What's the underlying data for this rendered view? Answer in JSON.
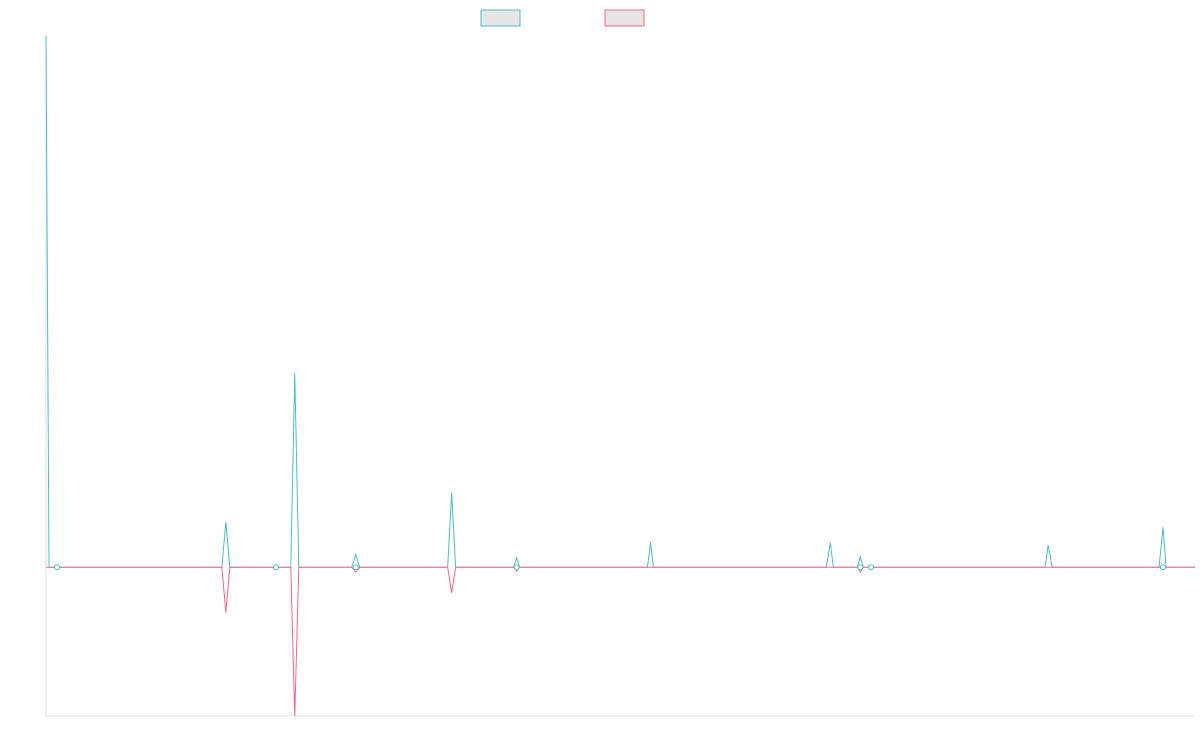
{
  "chart_data": {
    "type": "line",
    "title": "",
    "xlabel": "",
    "ylabel": "",
    "legend_position": "top-center",
    "grid": false,
    "ylim": [
      -0.28,
      1.0
    ],
    "series": [
      {
        "color": "#4bc0c0",
        "fill": "#e6e6e6",
        "points": [
          {
            "x": 0,
            "y": 1.0
          },
          {
            "x": 3,
            "y": 0.0
          },
          {
            "x": 11,
            "y": 0.0
          },
          {
            "x": 176,
            "y": 0.0
          },
          {
            "x": 180,
            "y": 0.085
          },
          {
            "x": 184,
            "y": 0.0
          },
          {
            "x": 230,
            "y": 0.0
          },
          {
            "x": 245,
            "y": 0.0
          },
          {
            "x": 249,
            "y": 0.365
          },
          {
            "x": 253,
            "y": 0.0
          },
          {
            "x": 306,
            "y": 0.0
          },
          {
            "x": 310,
            "y": 0.024
          },
          {
            "x": 314,
            "y": 0.0
          },
          {
            "x": 402,
            "y": 0.0
          },
          {
            "x": 406,
            "y": 0.14
          },
          {
            "x": 410,
            "y": 0.0
          },
          {
            "x": 468,
            "y": 0.0
          },
          {
            "x": 471,
            "y": 0.018
          },
          {
            "x": 474,
            "y": 0.0
          },
          {
            "x": 602,
            "y": 0.0
          },
          {
            "x": 605,
            "y": 0.046
          },
          {
            "x": 608,
            "y": 0.0
          },
          {
            "x": 781,
            "y": 0.0
          },
          {
            "x": 785,
            "y": 0.046
          },
          {
            "x": 788,
            "y": 0.0
          },
          {
            "x": 812,
            "y": 0.0
          },
          {
            "x": 815,
            "y": 0.02
          },
          {
            "x": 818,
            "y": 0.0
          },
          {
            "x": 826,
            "y": 0.0
          },
          {
            "x": 1000,
            "y": 0.0
          },
          {
            "x": 1003,
            "y": 0.042
          },
          {
            "x": 1007,
            "y": 0.0
          },
          {
            "x": 1114,
            "y": 0.0
          },
          {
            "x": 1118,
            "y": 0.075
          },
          {
            "x": 1121,
            "y": 0.0
          },
          {
            "x": 1150,
            "y": 0.0
          }
        ]
      },
      {
        "color": "#ff6384",
        "fill": "#e6e6e6",
        "points": [
          {
            "x": 0,
            "y": 0.0
          },
          {
            "x": 11,
            "y": 0.0
          },
          {
            "x": 176,
            "y": 0.0
          },
          {
            "x": 180,
            "y": -0.085
          },
          {
            "x": 184,
            "y": 0.0
          },
          {
            "x": 230,
            "y": 0.0
          },
          {
            "x": 245,
            "y": 0.0
          },
          {
            "x": 249,
            "y": -0.28
          },
          {
            "x": 253,
            "y": 0.0
          },
          {
            "x": 306,
            "y": 0.0
          },
          {
            "x": 310,
            "y": -0.009
          },
          {
            "x": 314,
            "y": 0.0
          },
          {
            "x": 402,
            "y": 0.0
          },
          {
            "x": 406,
            "y": -0.048
          },
          {
            "x": 410,
            "y": 0.0
          },
          {
            "x": 468,
            "y": 0.0
          },
          {
            "x": 471,
            "y": -0.007
          },
          {
            "x": 474,
            "y": 0.0
          },
          {
            "x": 812,
            "y": 0.0
          },
          {
            "x": 815,
            "y": -0.009
          },
          {
            "x": 818,
            "y": 0.0
          },
          {
            "x": 826,
            "y": 0.0
          },
          {
            "x": 1150,
            "y": 0.0
          }
        ]
      }
    ]
  }
}
